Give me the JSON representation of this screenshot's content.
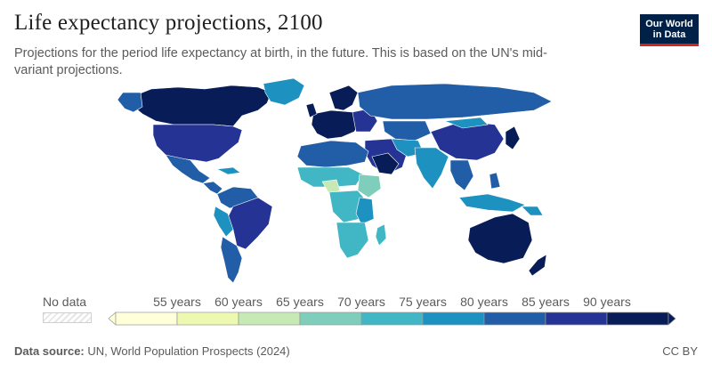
{
  "header": {
    "title": "Life expectancy projections, 2100",
    "subtitle": "Projections for the period life expectancy at birth, in the future. This is based on the UN's mid-variant projections."
  },
  "logo": {
    "line1": "Our World",
    "line2": "in Data"
  },
  "legend": {
    "no_data_label": "No data",
    "bins": [
      {
        "color": "#ffffd9",
        "label": null
      },
      {
        "color": "#edf8b1",
        "label": "55 years"
      },
      {
        "color": "#c7e9b4",
        "label": "60 years"
      },
      {
        "color": "#7fcdbb",
        "label": "65 years"
      },
      {
        "color": "#41b6c4",
        "label": "70 years"
      },
      {
        "color": "#1d91c0",
        "label": "75 years"
      },
      {
        "color": "#225ea8",
        "label": "80 years"
      },
      {
        "color": "#253494",
        "label": "85 years"
      },
      {
        "color": "#081d58",
        "label": "90 years"
      }
    ]
  },
  "footer": {
    "source_prefix": "Data source:",
    "source_text": " UN, World Population Prospects (2024)",
    "license": "CC BY"
  },
  "colors": {
    "darkest": "#081d58",
    "dark": "#253494",
    "blue": "#225ea8",
    "mid": "#1d91c0",
    "teal": "#41b6c4",
    "light_teal": "#7fcdbb",
    "pale": "#c7e9b4",
    "no_data": "#e6e6e6"
  }
}
